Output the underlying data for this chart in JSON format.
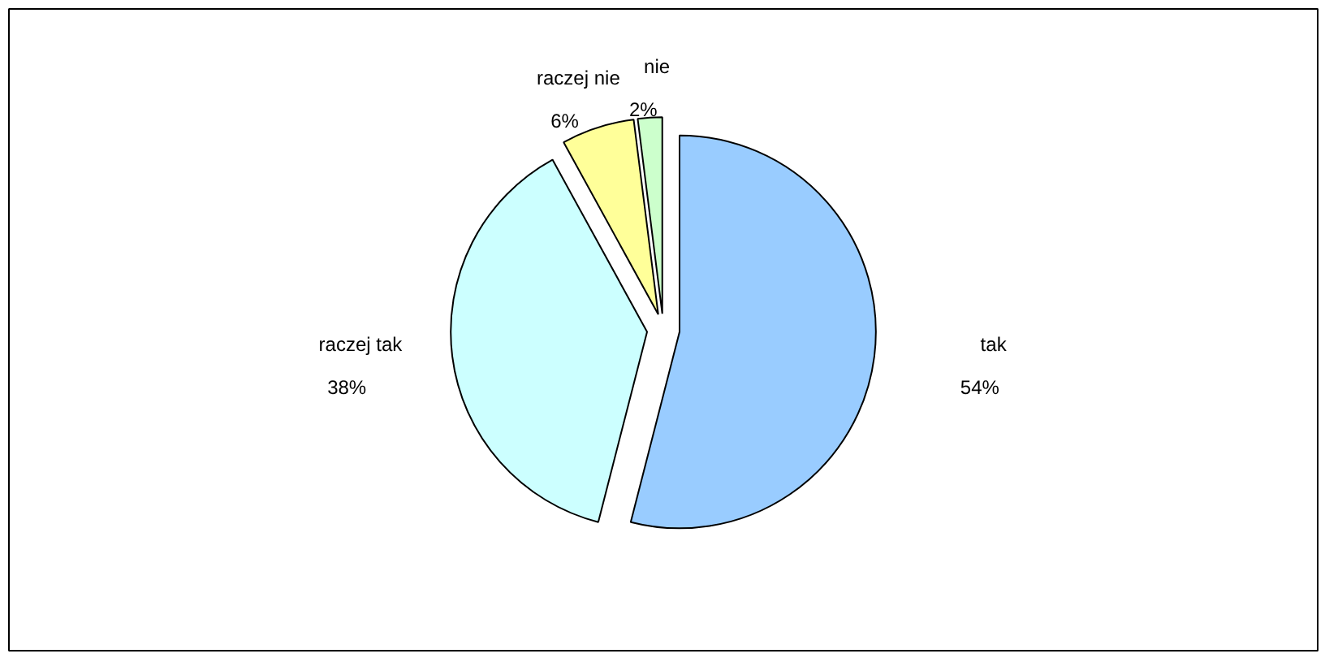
{
  "chart_data": {
    "type": "pie",
    "categories": [
      "tak",
      "raczej tak",
      "raczej nie",
      "nie"
    ],
    "values": [
      54,
      38,
      6,
      2
    ],
    "colors": [
      "#99ccff",
      "#ccffff",
      "#ffff99",
      "#ccffcc"
    ],
    "value_labels": [
      "54%",
      "38%",
      "6%",
      "2%"
    ]
  }
}
